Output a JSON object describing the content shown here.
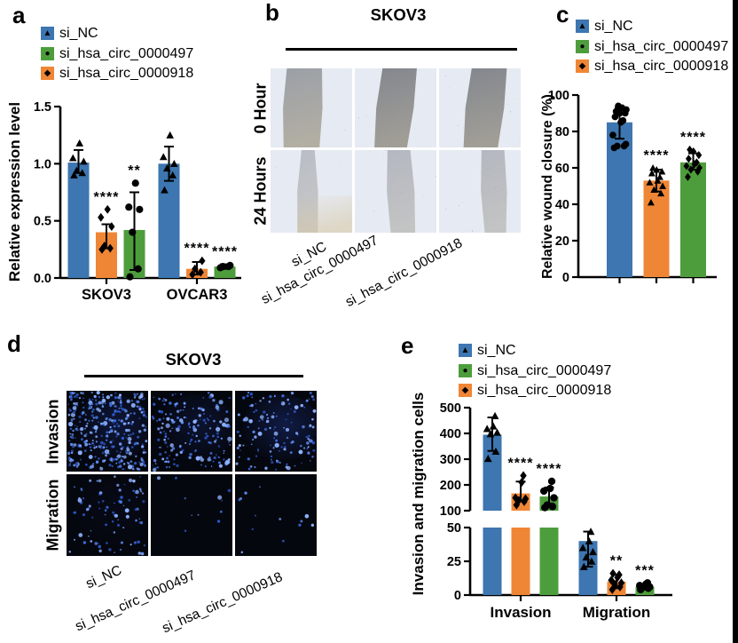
{
  "panel_labels": {
    "a": "a",
    "b": "b",
    "c": "c",
    "d": "d",
    "e": "e"
  },
  "colors": {
    "blue": "#3D76B0",
    "green": "#4E9D3C",
    "orange": "#EF8636",
    "axis": "#000000",
    "fluor_bg": "#05070E",
    "fluor_dot": "#3E6EE0",
    "fluor_haze": "#2743B0",
    "wound_base": "#5E6675",
    "wound_speckle_light": "#C9CFDD",
    "wound_gap_light": [
      "#9BA0A7",
      "#B2AEA3"
    ],
    "wound_gap_dark": [
      "#83878E",
      "#A19E97"
    ]
  },
  "legend": {
    "items": [
      {
        "label": "si_NC",
        "color_key": "blue",
        "marker": "triangle"
      },
      {
        "label": "si_hsa_circ_0000497",
        "color_key": "green",
        "marker": "circle"
      },
      {
        "label": "si_hsa_circ_0000918",
        "color_key": "orange",
        "marker": "diamond"
      }
    ]
  },
  "panel_b": {
    "cell_line": "SKOV3",
    "row_labels": [
      "0 Hour",
      "24 Hours"
    ],
    "col_labels": [
      "si_NC",
      "si_hsa_circ_0000497",
      "si_hsa_circ_0000918"
    ],
    "wounds": [
      {
        "row": "0 Hour",
        "col": "si_NC",
        "gap_top": [
          0.2,
          0.63
        ],
        "gap_bottom": [
          0.16,
          0.6
        ],
        "opacity": 1,
        "tone": "light",
        "warm": false,
        "regrow": false
      },
      {
        "row": "0 Hour",
        "col": "si_hsa_circ_0000497",
        "gap_top": [
          0.34,
          0.76
        ],
        "gap_bottom": [
          0.24,
          0.64
        ],
        "opacity": 1,
        "tone": "dark",
        "warm": false,
        "regrow": false
      },
      {
        "row": "0 Hour",
        "col": "si_hsa_circ_0000918",
        "gap_top": [
          0.4,
          0.83
        ],
        "gap_bottom": [
          0.3,
          0.72
        ],
        "opacity": 1,
        "tone": "dark",
        "warm": false,
        "regrow": false
      },
      {
        "row": "24 Hours",
        "col": "si_NC",
        "gap_top": [
          0.38,
          0.54
        ],
        "gap_bottom": [
          0.33,
          0.58
        ],
        "opacity": 0.7,
        "tone": "dark",
        "warm": true,
        "regrow": true
      },
      {
        "row": "24 Hours",
        "col": "si_hsa_circ_0000497",
        "gap_top": [
          0.4,
          0.68
        ],
        "gap_bottom": [
          0.44,
          0.74
        ],
        "opacity": 0.78,
        "tone": "dark",
        "warm": false,
        "regrow": true
      },
      {
        "row": "24 Hours",
        "col": "si_hsa_circ_0000918",
        "gap_top": [
          0.52,
          0.8
        ],
        "gap_bottom": [
          0.56,
          0.82
        ],
        "opacity": 0.78,
        "tone": "dark",
        "warm": false,
        "regrow": true
      }
    ]
  },
  "panel_d": {
    "cell_line": "SKOV3",
    "row_labels": [
      "Invasion",
      "Migration"
    ],
    "col_labels": [
      "si_NC",
      "si_hsa_circ_0000497",
      "si_hsa_circ_0000918"
    ],
    "cells": [
      {
        "row": "Invasion",
        "col": "si_NC",
        "dots": 360,
        "haze": 0.3
      },
      {
        "row": "Invasion",
        "col": "si_hsa_circ_0000497",
        "dots": 185,
        "haze": 0.22
      },
      {
        "row": "Invasion",
        "col": "si_hsa_circ_0000918",
        "dots": 135,
        "haze": 0.38
      },
      {
        "row": "Migration",
        "col": "si_NC",
        "dots": 90,
        "haze": 0.06
      },
      {
        "row": "Migration",
        "col": "si_hsa_circ_0000497",
        "dots": 11,
        "haze": 0
      },
      {
        "row": "Migration",
        "col": "si_hsa_circ_0000918",
        "dots": 13,
        "haze": 0
      }
    ]
  },
  "chart_data": [
    {
      "id": "panel_a",
      "type": "bar",
      "ylabel": "Relative expression level",
      "categories": [
        "SKOV3",
        "OVCAR3"
      ],
      "ylim": [
        0,
        1.5
      ],
      "yticks": [
        "0.0",
        "0.5",
        "1.0",
        "1.5"
      ],
      "grid": false,
      "legend_position": "top-left",
      "series": [
        {
          "name": "si_NC",
          "color_key": "blue",
          "marker": "triangle",
          "values": [
            1.01,
            1.0
          ],
          "errors": [
            [
              0.92,
              1.12
            ],
            [
              0.85,
              1.15
            ]
          ],
          "points": [
            [
              0.9,
              0.92,
              0.94,
              1.02,
              1.05,
              1.18
            ],
            [
              0.77,
              0.9,
              0.96,
              1.0,
              1.06,
              1.25
            ]
          ],
          "sig": [
            "",
            ""
          ]
        },
        {
          "name": "si_hsa_circ_0000918",
          "color_key": "orange",
          "marker": "diamond",
          "values": [
            0.4,
            0.08
          ],
          "errors": [
            [
              0.26,
              0.47
            ],
            [
              0.03,
              0.14
            ]
          ],
          "points": [
            [
              0.25,
              0.26,
              0.28,
              0.45,
              0.53,
              0.6
            ],
            [
              0.03,
              0.05,
              0.08,
              0.15
            ]
          ],
          "sig": [
            "****",
            "****"
          ]
        },
        {
          "name": "si_hsa_circ_0000497",
          "color_key": "green",
          "marker": "circle",
          "values": [
            0.42,
            0.1
          ],
          "errors": [
            [
              0.07,
              0.75
            ],
            [
              0.08,
              0.12
            ]
          ],
          "points": [
            [
              0.01,
              0.08,
              0.4,
              0.6,
              0.62,
              0.83
            ],
            [
              0.09,
              0.1,
              0.1,
              0.11
            ]
          ],
          "sig": [
            "**",
            "****"
          ]
        }
      ]
    },
    {
      "id": "panel_c",
      "type": "bar",
      "ylabel": "Relative wound closure (%)",
      "categories": [
        ""
      ],
      "ylim": [
        0,
        100
      ],
      "yticks": [
        "0",
        "20",
        "40",
        "60",
        "80",
        "100"
      ],
      "grid": false,
      "legend_position": "top",
      "series": [
        {
          "name": "si_NC",
          "color_key": "blue",
          "marker": "circle",
          "values": [
            85
          ],
          "errors": [
            [
              76,
              93
            ]
          ],
          "points": [
            [
              71,
              72,
              72,
              73,
              78,
              85,
              86,
              88,
              90,
              90,
              91,
              92,
              93,
              94
            ]
          ],
          "sig": [
            ""
          ]
        },
        {
          "name": "si_hsa_circ_0000918",
          "color_key": "orange",
          "marker": "triangle",
          "values": [
            53
          ],
          "errors": [
            [
              47,
              59
            ]
          ],
          "points": [
            [
              41,
              46,
              48,
              50,
              52,
              53,
              55,
              57,
              58,
              59,
              60
            ]
          ],
          "sig": [
            "****"
          ]
        },
        {
          "name": "si_hsa_circ_0000497",
          "color_key": "green",
          "marker": "diamond",
          "values": [
            63
          ],
          "errors": [
            [
              59,
              68
            ]
          ],
          "points": [
            [
              55,
              58,
              59,
              60,
              61,
              62,
              63,
              65,
              67,
              69,
              70
            ]
          ],
          "sig": [
            "****"
          ]
        }
      ]
    },
    {
      "id": "panel_e",
      "type": "bar-broken-axis",
      "ylabel": "Invasion and migration cells",
      "categories": [
        "Invasion",
        "Migration"
      ],
      "axis_break": {
        "lower": {
          "lim": [
            0,
            50
          ],
          "ticks": [
            "0",
            "25",
            "50"
          ]
        },
        "upper": {
          "lim": [
            100,
            500
          ],
          "ticks": [
            "100",
            "200",
            "300",
            "400",
            "500"
          ]
        }
      },
      "grid": false,
      "legend_position": "top",
      "series": [
        {
          "name": "si_NC",
          "color_key": "blue",
          "marker": "triangle",
          "values": [
            395,
            40
          ],
          "errors": [
            [
              332,
              462
            ],
            [
              21,
              47
            ]
          ],
          "points": [
            [
              302,
              330,
              398,
              404,
              418,
              428,
              468
            ],
            [
              21,
              25,
              28,
              32,
              35,
              40,
              47
            ]
          ],
          "sig": [
            "",
            ""
          ]
        },
        {
          "name": "si_hsa_circ_0000918",
          "color_key": "orange",
          "marker": "diamond",
          "values": [
            167,
            10
          ],
          "errors": [
            [
              140,
              213
            ],
            [
              5,
              15
            ]
          ],
          "points": [
            [
              122,
              135,
              140,
              146,
              150,
              210,
              236
            ],
            [
              4,
              6,
              8,
              9,
              11,
              13,
              15,
              16
            ]
          ],
          "sig": [
            "****",
            "**"
          ]
        },
        {
          "name": "si_hsa_circ_0000497",
          "color_key": "green",
          "marker": "circle",
          "values": [
            155,
            6
          ],
          "errors": [
            [
              128,
              190
            ],
            [
              4,
              8
            ]
          ],
          "points": [
            [
              112,
              116,
              122,
              150,
              176,
              186,
              214
            ],
            [
              4,
              5,
              6,
              6,
              7,
              8,
              9
            ]
          ],
          "sig": [
            "****",
            "***"
          ]
        }
      ]
    }
  ]
}
